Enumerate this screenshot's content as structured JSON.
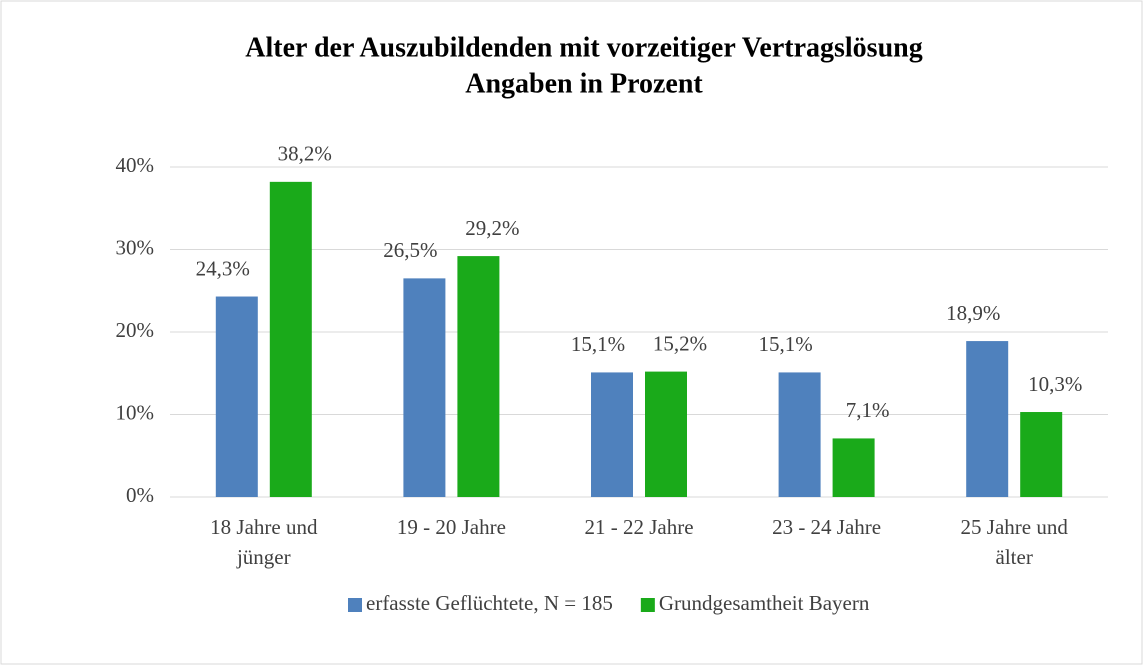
{
  "chart_data": {
    "type": "bar",
    "title": "Alter der Auszubildenden mit vorzeitiger Vertragslösung",
    "subtitle": "Angaben in Prozent",
    "categories": [
      "18 Jahre und jünger",
      "19 - 20 Jahre",
      "21 - 22 Jahre",
      "23 - 24 Jahre",
      "25 Jahre und älter"
    ],
    "series": [
      {
        "name": "erfasste Geflüchtete, N = 185",
        "color": "#4f81bd",
        "values": [
          24.3,
          26.5,
          15.1,
          15.1,
          18.9
        ],
        "value_labels": [
          "24,3%",
          "26,5%",
          "15,1%",
          "15,1%",
          "18,9%"
        ]
      },
      {
        "name": "Grundgesamtheit Bayern",
        "color": "#1aaa1a",
        "values": [
          38.2,
          29.2,
          15.2,
          7.1,
          10.3
        ],
        "value_labels": [
          "38,2%",
          "29,2%",
          "15,2%",
          "7,1%",
          "10,3%"
        ]
      }
    ],
    "ylim": [
      0,
      40
    ],
    "yticks": [
      {
        "value": 0,
        "label": "0%"
      },
      {
        "value": 10,
        "label": "10%"
      },
      {
        "value": 20,
        "label": "20%"
      },
      {
        "value": 30,
        "label": "30%"
      },
      {
        "value": 40,
        "label": "40%"
      }
    ],
    "grid": true,
    "legend": "bottom"
  }
}
